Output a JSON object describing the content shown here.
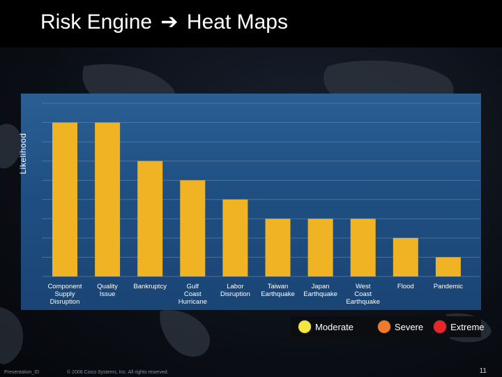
{
  "slide": {
    "title_left": "Risk Engine",
    "title_arrow": "➔",
    "title_right": "Heat Maps",
    "footer_left": "Presentation_ID",
    "footer_copyright": "© 2008 Cisco Systems, Inc. All rights reserved.",
    "page_number": "11"
  },
  "colors": {
    "bar": "#F0B323",
    "moderate": "#F5E642",
    "severe": "#F07A2A",
    "extreme": "#E8262A"
  },
  "legend": [
    {
      "label": "Moderate",
      "color_key": "moderate"
    },
    {
      "label": "Severe",
      "color_key": "severe"
    },
    {
      "label": "Extreme",
      "color_key": "extreme"
    }
  ],
  "chart_data": {
    "type": "bar",
    "title": "",
    "xlabel": "",
    "ylabel": "Likelihood",
    "ylim": [
      0,
      9
    ],
    "grid": true,
    "categories": [
      [
        "Component",
        "Supply",
        "Disruption"
      ],
      [
        "Quality",
        "Issue"
      ],
      [
        "Bankruptcy"
      ],
      [
        "Gulf",
        "Coast",
        "Hurricane"
      ],
      [
        "Labor",
        "Disruption"
      ],
      [
        "Taiwan",
        "Earthquake"
      ],
      [
        "Japan",
        "Earthquake"
      ],
      [
        "West",
        "Coast",
        "Earthquake"
      ],
      [
        "Flood"
      ],
      [
        "Pandemic"
      ]
    ],
    "values": [
      8,
      8,
      6,
      5,
      4,
      3,
      3,
      3,
      2,
      1
    ]
  }
}
